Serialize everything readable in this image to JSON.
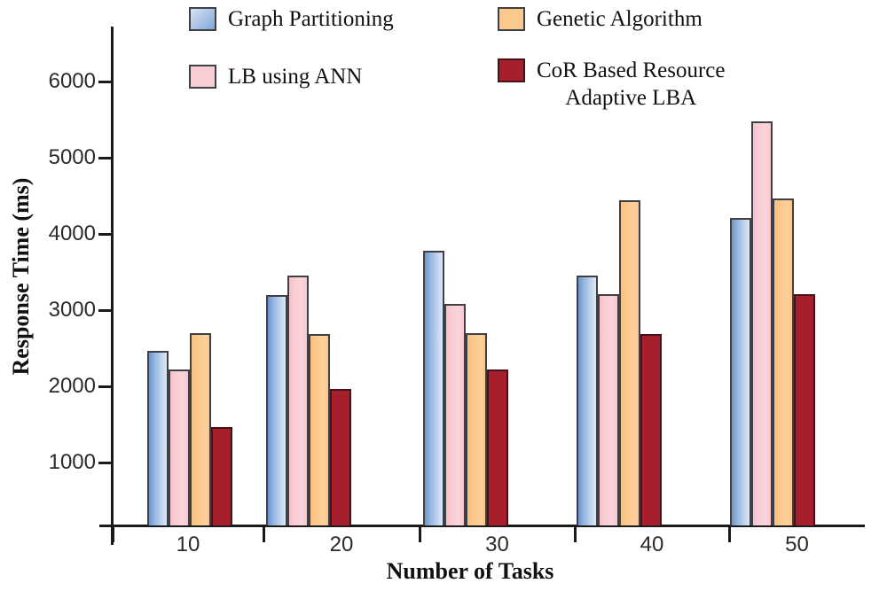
{
  "figure": {
    "ylabel": "Response Time (ms)",
    "xlabel": "Number of Tasks"
  },
  "legend": {
    "items": [
      {
        "key": "graph-partitioning",
        "label": "Graph Partitioning",
        "color": "#a9c2e7"
      },
      {
        "key": "genetic-algorithm",
        "label": "Genetic Algorithm",
        "color": "#fcc98d"
      },
      {
        "key": "lb-using-ann",
        "label": "LB using ANN",
        "color": "#f9cdd4"
      },
      {
        "key": "cor-based-resource-adaptive-lba",
        "label": "CoR Based Resource",
        "line2": "Adaptive LBA",
        "color": "#a5202b"
      }
    ]
  },
  "chart_data": {
    "type": "bar",
    "title": "",
    "xlabel": "Number of Tasks",
    "ylabel": "Response Time (ms)",
    "categories": [
      "10",
      "20",
      "30",
      "40",
      "50"
    ],
    "series": [
      {
        "key": "graph-partitioning",
        "name": "Graph Partitioning",
        "color": "#a9c2e7",
        "values": [
          2480,
          3210,
          3790,
          3460,
          4220
        ]
      },
      {
        "key": "lb-using-ann",
        "name": "LB using ANN",
        "color": "#f9cdd4",
        "values": [
          2230,
          3460,
          3090,
          3220,
          5490
        ]
      },
      {
        "key": "genetic-algorithm",
        "name": "Genetic Algorithm",
        "color": "#fcc98d",
        "values": [
          2710,
          2700,
          2710,
          4450,
          4480
        ]
      },
      {
        "key": "cor-based-resource-adaptive-lba",
        "name": "CoR Based Resource Adaptive LBA",
        "color": "#a5202b",
        "values": [
          1480,
          1980,
          2230,
          2700,
          3220
        ]
      }
    ],
    "yticks": [
      1000,
      2000,
      3000,
      4000,
      5000,
      6000
    ],
    "ylim": [
      0,
      6700
    ],
    "legend_position": "top",
    "grid": false
  }
}
